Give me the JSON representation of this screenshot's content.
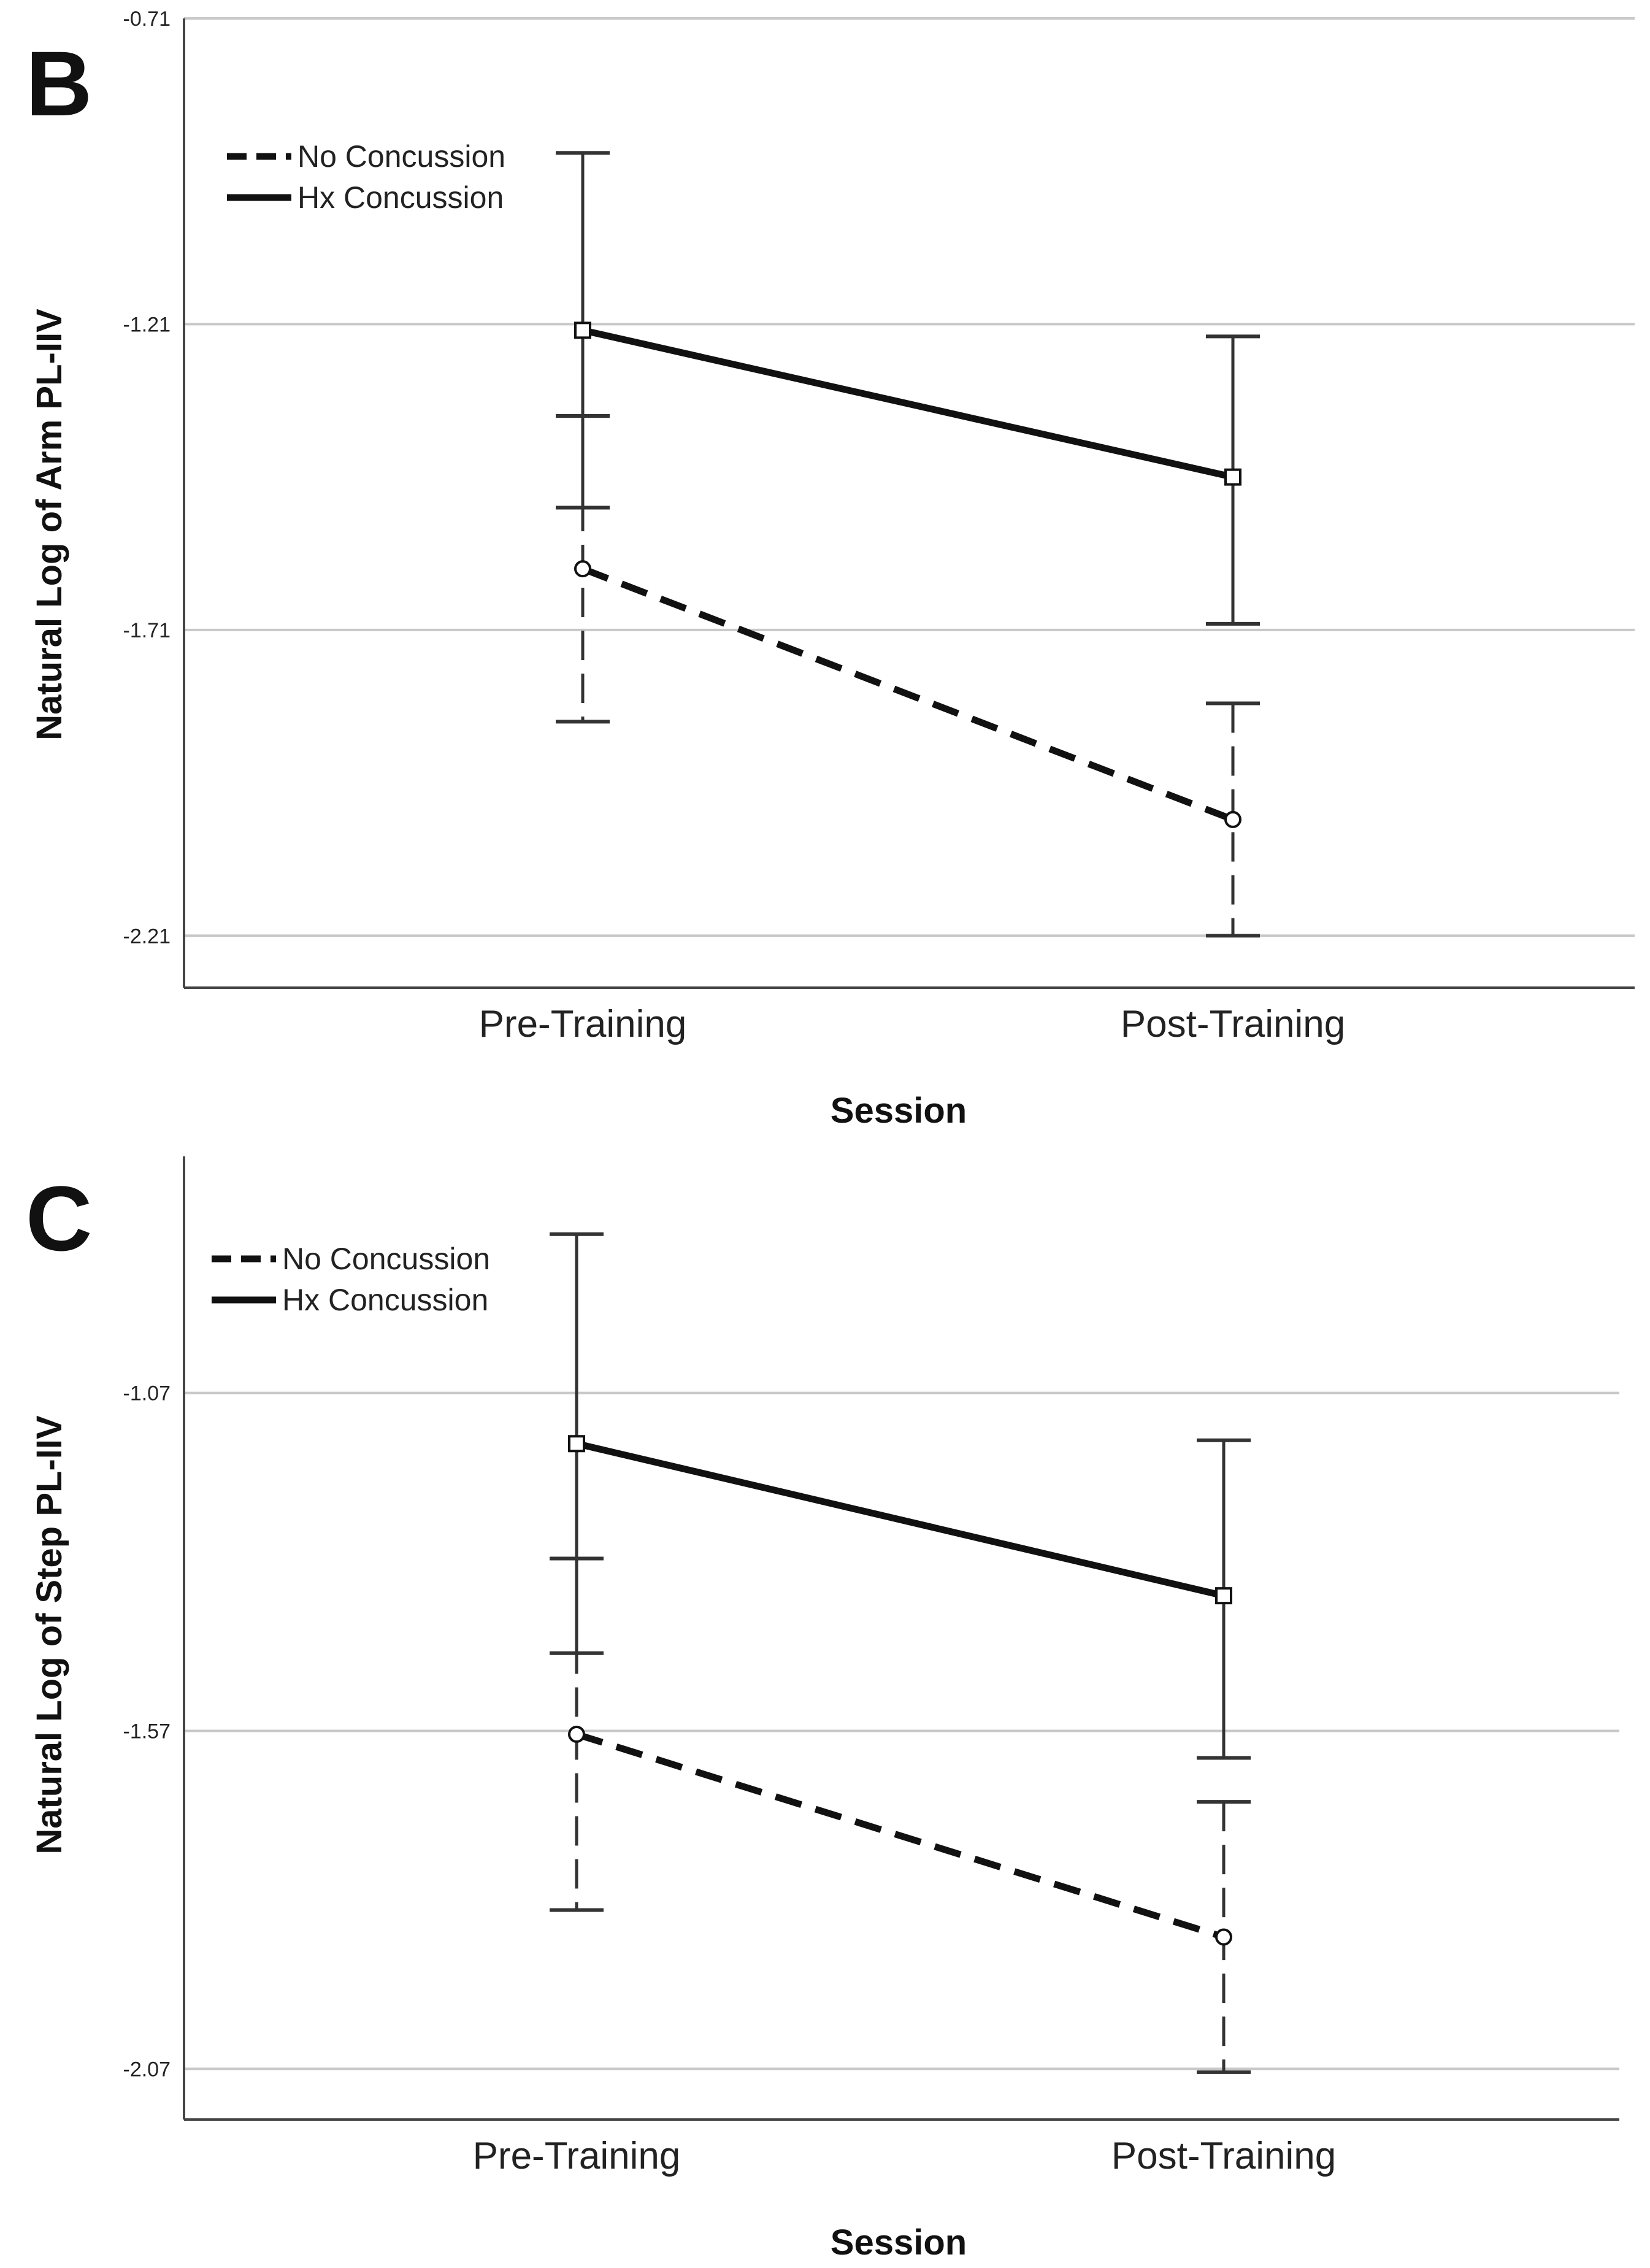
{
  "colors": {
    "line": "#111111",
    "errorbar": "#333333",
    "gridline": "#c8c8c8",
    "axis": "#444444",
    "background": "#ffffff"
  },
  "chart_data": [
    {
      "type": "line",
      "panel_label": "B",
      "title": "",
      "xlabel": "Session",
      "ylabel": "Natural Log of Arm PL-IIV",
      "categories": [
        "Pre-Training",
        "Post-Training"
      ],
      "yticks": [
        -0.71,
        -1.21,
        -1.71,
        -2.21
      ],
      "ytick_labels": [
        "-0.71",
        "-1.21",
        "-1.71",
        "-2.21"
      ],
      "ylim": [
        -2.295,
        -0.71
      ],
      "grid": true,
      "legend_position": "top-left",
      "series": [
        {
          "name": "No Concussion",
          "style": "dashed",
          "marker": "circle",
          "values": [
            -1.61,
            -2.02
          ],
          "error_low": [
            -1.86,
            -2.21
          ],
          "error_high": [
            -1.36,
            -1.83
          ]
        },
        {
          "name": "Hx Concussion",
          "style": "solid",
          "marker": "square",
          "values": [
            -1.22,
            -1.46
          ],
          "error_low": [
            -1.51,
            -1.7
          ],
          "error_high": [
            -0.93,
            -1.23
          ]
        }
      ]
    },
    {
      "type": "line",
      "panel_label": "C",
      "title": "",
      "xlabel": "Session",
      "ylabel": "Natural Log of Step PL-IIV",
      "categories": [
        "Pre-Training",
        "Post-Training"
      ],
      "yticks": [
        -1.07,
        -1.57,
        -2.07
      ],
      "ytick_labels": [
        "-1.07",
        "-1.57",
        "-2.07"
      ],
      "ylim": [
        -2.145,
        -0.72
      ],
      "grid": true,
      "legend_position": "top-left",
      "series": [
        {
          "name": "No Concussion",
          "style": "dashed",
          "marker": "circle",
          "values": [
            -1.575,
            -1.875
          ],
          "error_low": [
            -1.835,
            -2.075
          ],
          "error_high": [
            -1.315,
            -1.675
          ]
        },
        {
          "name": "Hx Concussion",
          "style": "solid",
          "marker": "square",
          "values": [
            -1.145,
            -1.37
          ],
          "error_low": [
            -1.455,
            -1.61
          ],
          "error_high": [
            -0.835,
            -1.14
          ]
        }
      ]
    }
  ]
}
